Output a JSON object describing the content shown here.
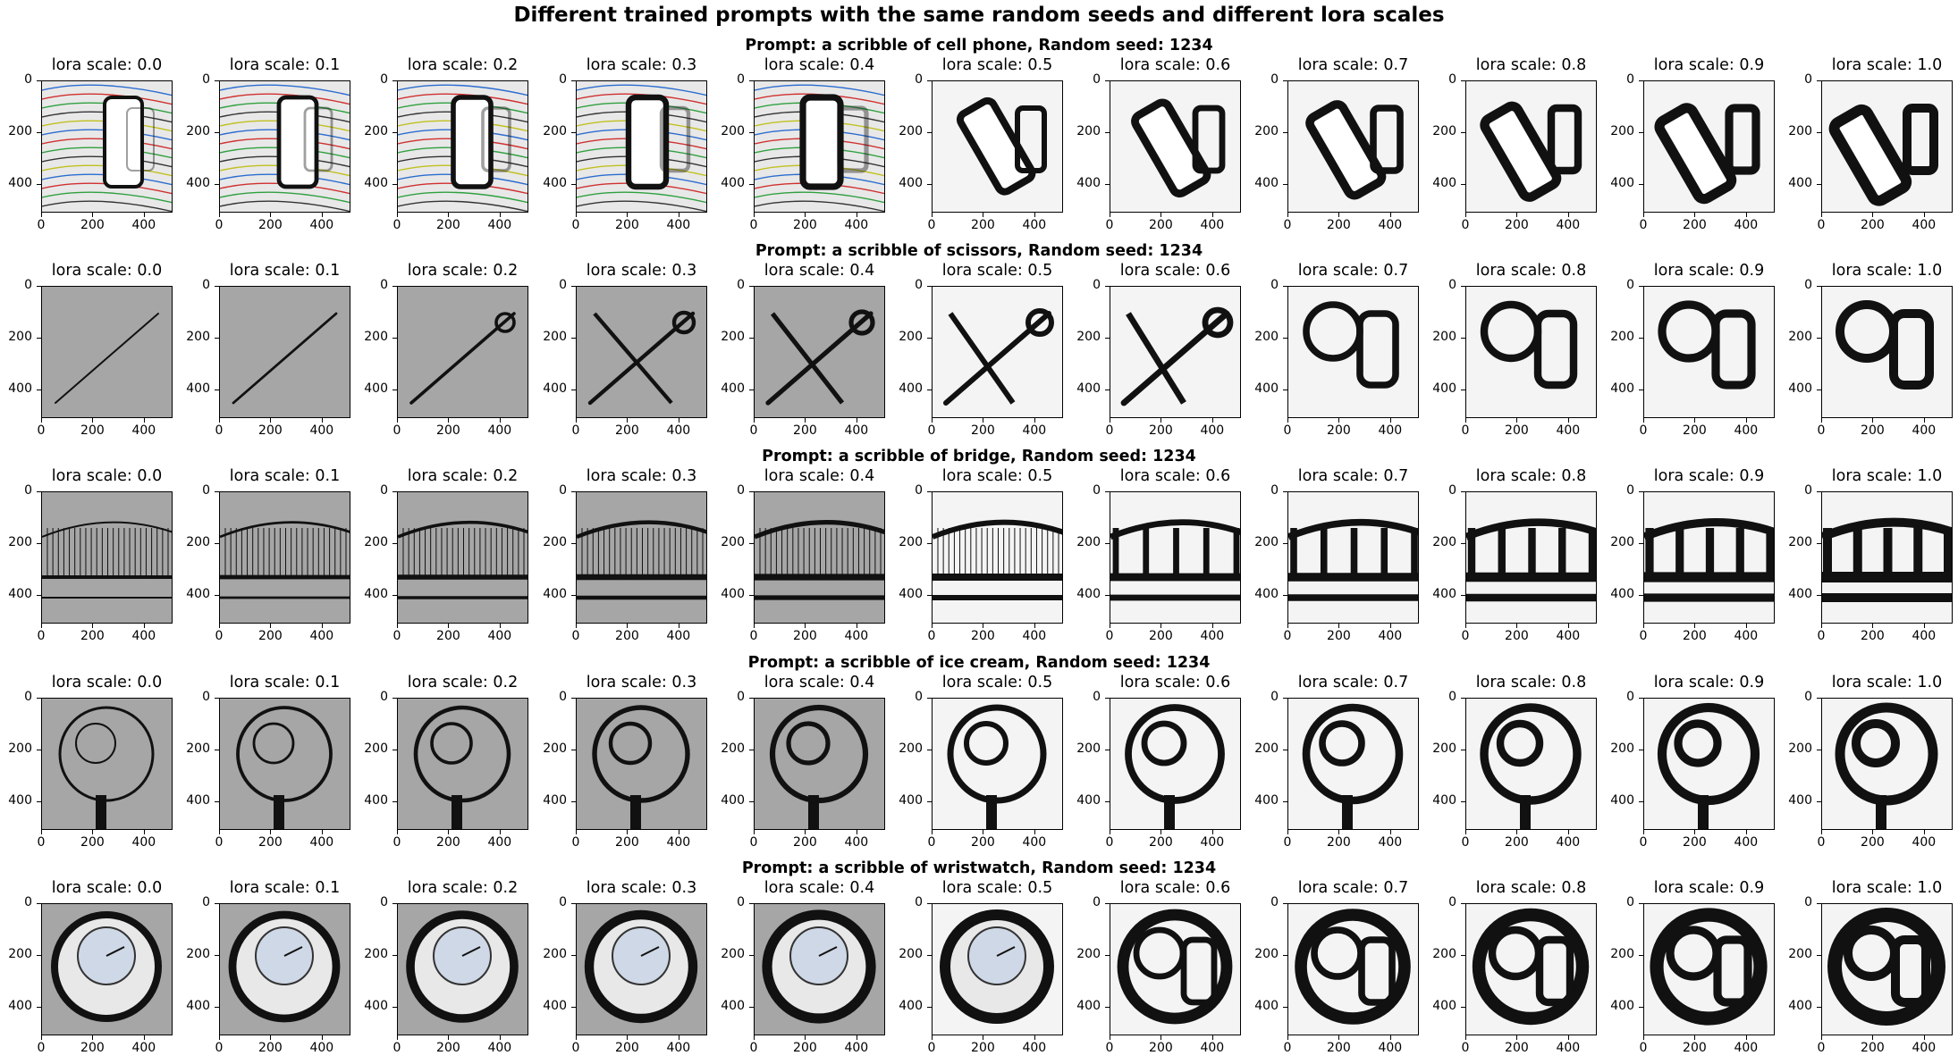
{
  "figure": {
    "title": "Different trained prompts with the same random seeds and different lora scales",
    "scales": [
      "lora scale: 0.0",
      "lora scale: 0.1",
      "lora scale: 0.2",
      "lora scale: 0.3",
      "lora scale: 0.4",
      "lora scale: 0.5",
      "lora scale: 0.6",
      "lora scale: 0.7",
      "lora scale: 0.8",
      "lora scale: 0.9",
      "lora scale: 1.0"
    ],
    "yticks": [
      "0",
      "200",
      "400"
    ],
    "xticks": [
      "0",
      "200",
      "400"
    ],
    "rows": [
      {
        "prompt": "Prompt: a scribble of cell phone, Random seed: 1234",
        "subject": "cell-phone"
      },
      {
        "prompt": "Prompt: a scribble of scissors, Random seed: 1234",
        "subject": "scissors"
      },
      {
        "prompt": "Prompt: a scribble of bridge, Random seed: 1234",
        "subject": "bridge"
      },
      {
        "prompt": "Prompt: a scribble of ice cream, Random seed: 1234",
        "subject": "ice-cream"
      },
      {
        "prompt": "Prompt: a scribble of wristwatch, Random seed: 1234",
        "subject": "wristwatch"
      }
    ],
    "colors": {
      "gray_bg": "#9a9a9a",
      "light_bg": "#f4f4f4",
      "ink": "#111111"
    }
  }
}
